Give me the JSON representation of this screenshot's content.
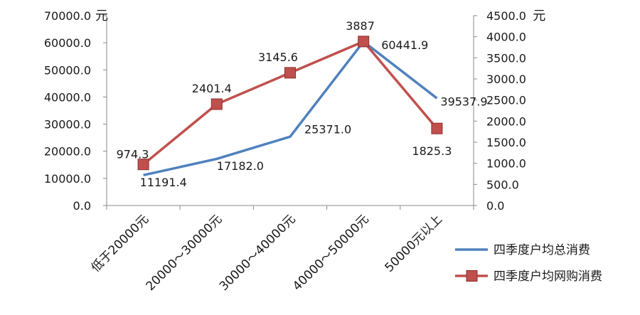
{
  "chart_data": {
    "type": "line",
    "categories": [
      "低于20000元",
      "20000～30000元",
      "30000～40000元",
      "40000～50000元",
      "50000元以上"
    ],
    "series": [
      {
        "name": "四季度户均总消费",
        "axis": "left",
        "values": [
          11191.4,
          17182.0,
          25371.0,
          60441.9,
          39537.9
        ],
        "value_labels": [
          "11191.4",
          "17182.0",
          "25371.0",
          "60441.9",
          "39537.9"
        ],
        "color": "#4F81BD",
        "marker": "none"
      },
      {
        "name": "四季度户均网购消费",
        "axis": "right",
        "values": [
          974.3,
          2401.4,
          3145.6,
          3887,
          1825.3
        ],
        "value_labels": [
          "974.3",
          "2401.4",
          "3145.6",
          "3887",
          "1825.3"
        ],
        "color": "#C0504D",
        "marker": "square"
      }
    ],
    "y_left": {
      "range": [
        0,
        70000
      ],
      "ticks": [
        0,
        10000,
        20000,
        30000,
        40000,
        50000,
        60000,
        70000
      ],
      "tick_labels": [
        "0.0",
        "10000.0",
        "20000.0",
        "30000.0",
        "40000.0",
        "50000.0",
        "60000.0",
        "70000.0"
      ],
      "unit": "元"
    },
    "y_right": {
      "range": [
        0,
        4500
      ],
      "ticks": [
        0,
        500,
        1000,
        1500,
        2000,
        2500,
        3000,
        3500,
        4000,
        4500
      ],
      "tick_labels": [
        "0.0",
        "500.0",
        "1000.0",
        "1500.0",
        "2000.0",
        "2500.0",
        "3000.0",
        "3500.0",
        "4000.0",
        "4500.0"
      ],
      "unit": "元"
    },
    "grid": false,
    "legend_position": "bottom-right"
  }
}
